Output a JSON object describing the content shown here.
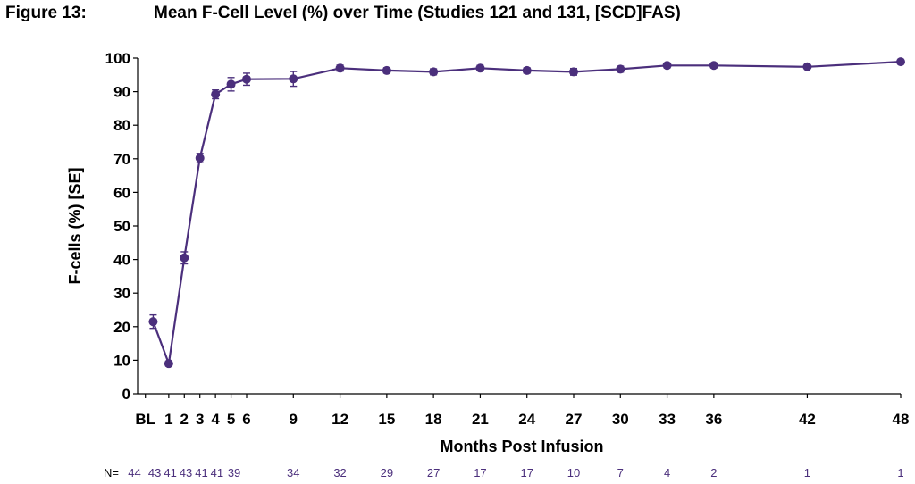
{
  "figure": {
    "label": "Figure 13:",
    "title": "Mean F-Cell Level (%) over Time (Studies 121 and 131, [SCD]FAS)"
  },
  "chart_data": {
    "type": "line",
    "xlabel": "Months Post Infusion",
    "ylabel": "F-cells (%) [SE]",
    "ylim": [
      0,
      100
    ],
    "yticks": [
      0,
      10,
      20,
      30,
      40,
      50,
      60,
      70,
      80,
      90,
      100
    ],
    "xlim": [
      -1,
      48
    ],
    "x_tick_positions": [
      -0.5,
      1,
      2,
      3,
      4,
      5,
      6,
      9,
      12,
      15,
      18,
      21,
      24,
      27,
      30,
      33,
      36,
      42,
      48
    ],
    "x_tick_labels": [
      "BL",
      "1",
      "2",
      "3",
      "4",
      "5",
      "6",
      "9",
      "12",
      "15",
      "18",
      "21",
      "24",
      "27",
      "30",
      "33",
      "36",
      "42",
      "48"
    ],
    "color": "#4b2f7c",
    "grid": false,
    "n_label": "N=",
    "series": [
      {
        "x": [
          0,
          1,
          2,
          3,
          4,
          5,
          6,
          9,
          12,
          15,
          18,
          21,
          24,
          27,
          30,
          33,
          36,
          42,
          48
        ],
        "y": [
          21.5,
          9.0,
          40.5,
          70.2,
          89.2,
          92.2,
          93.7,
          93.8,
          97.0,
          96.3,
          95.9,
          97.0,
          96.3,
          95.9,
          96.7,
          97.8,
          97.8,
          97.4,
          98.9
        ],
        "se": [
          2.0,
          0.7,
          1.8,
          1.4,
          1.3,
          2.0,
          1.8,
          2.2,
          0.9,
          0.8,
          0.9,
          0.8,
          0.8,
          1.0,
          0.9,
          0.7,
          0.7,
          0,
          0
        ]
      }
    ],
    "n_values": [
      44,
      43,
      41,
      43,
      41,
      41,
      39,
      34,
      32,
      29,
      27,
      17,
      17,
      10,
      7,
      4,
      2,
      1,
      1
    ],
    "n_x_positions": [
      -1.2,
      0.1,
      1.1,
      2.1,
      3.1,
      4.1,
      5.2,
      9,
      12,
      15,
      18,
      21,
      24,
      27,
      30,
      33,
      36,
      42,
      48
    ]
  }
}
